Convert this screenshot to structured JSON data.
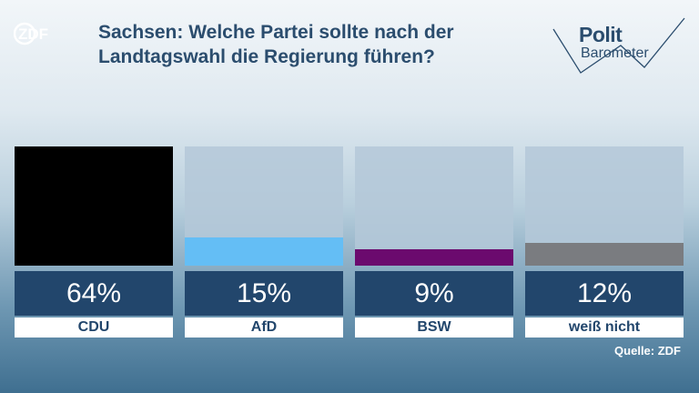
{
  "header": {
    "broadcaster": "ZDF",
    "title_line1": "Sachsen: Welche Partei sollte nach der",
    "title_line2": "Landtagswahl die Regierung führen?",
    "brand_polit": "Polit",
    "brand_barometer": "Barometer"
  },
  "chart_data": {
    "type": "bar",
    "title": "Sachsen: Welche Partei sollte nach der Landtagswahl die Regierung führen?",
    "categories": [
      "CDU",
      "AfD",
      "BSW",
      "weiß nicht"
    ],
    "values": [
      64,
      15,
      9,
      12
    ],
    "value_labels": [
      "64%",
      "15%",
      "9%",
      "12%"
    ],
    "colors": [
      "#000000",
      "#64bef5",
      "#6b0a6e",
      "#7a7c80"
    ],
    "ylim": [
      0,
      64
    ]
  },
  "footer": {
    "source": "Quelle: ZDF"
  }
}
